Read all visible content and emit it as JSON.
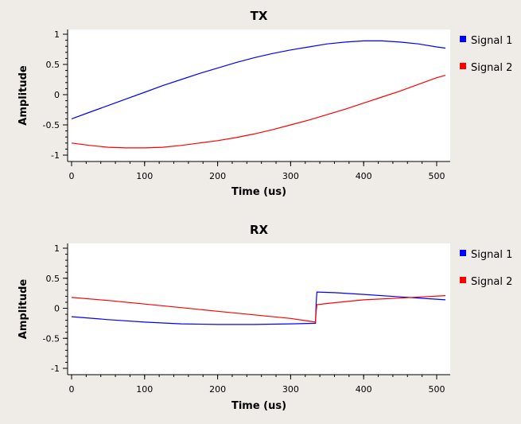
{
  "chart_data": [
    {
      "type": "line",
      "title": "TX",
      "xlabel": "Time (us)",
      "ylabel": "Amplitude",
      "xlim": [
        0,
        512
      ],
      "ylim": [
        -1,
        1
      ],
      "xticks": [
        0,
        100,
        200,
        300,
        400,
        500
      ],
      "yticks": [
        1,
        0.5,
        0,
        -0.5,
        -1
      ],
      "grid": false,
      "legend": "right",
      "series": [
        {
          "name": "Signal 1",
          "color": "#0000ff",
          "x": [
            0,
            25,
            50,
            75,
            100,
            125,
            150,
            175,
            200,
            225,
            250,
            275,
            300,
            325,
            350,
            375,
            400,
            425,
            450,
            475,
            500,
            512
          ],
          "y": [
            -0.4,
            -0.29,
            -0.18,
            -0.07,
            0.04,
            0.15,
            0.25,
            0.35,
            0.44,
            0.53,
            0.61,
            0.68,
            0.74,
            0.79,
            0.84,
            0.87,
            0.89,
            0.89,
            0.87,
            0.84,
            0.79,
            0.77
          ]
        },
        {
          "name": "Signal 2",
          "color": "#ff0000",
          "x": [
            0,
            25,
            50,
            75,
            100,
            125,
            150,
            175,
            200,
            225,
            250,
            275,
            300,
            325,
            350,
            375,
            400,
            425,
            450,
            475,
            500,
            512
          ],
          "y": [
            -0.8,
            -0.84,
            -0.87,
            -0.88,
            -0.88,
            -0.87,
            -0.84,
            -0.8,
            -0.76,
            -0.71,
            -0.65,
            -0.58,
            -0.5,
            -0.42,
            -0.33,
            -0.24,
            -0.14,
            -0.04,
            0.06,
            0.17,
            0.28,
            0.32
          ]
        }
      ]
    },
    {
      "type": "line",
      "title": "RX",
      "xlabel": "Time (us)",
      "ylabel": "Amplitude",
      "xlim": [
        0,
        512
      ],
      "ylim": [
        -1,
        1
      ],
      "xticks": [
        0,
        100,
        200,
        300,
        400,
        500
      ],
      "yticks": [
        1,
        0.5,
        0,
        -0.5,
        -1
      ],
      "grid": false,
      "legend": "right",
      "series": [
        {
          "name": "Signal 1",
          "color": "#0000ff",
          "x": [
            0,
            50,
            100,
            150,
            200,
            250,
            300,
            334,
            335,
            336,
            360,
            400,
            450,
            512
          ],
          "y": [
            -0.14,
            -0.19,
            -0.23,
            -0.26,
            -0.27,
            -0.27,
            -0.26,
            -0.25,
            0.09,
            0.27,
            0.26,
            0.23,
            0.19,
            0.14
          ]
        },
        {
          "name": "Signal 2",
          "color": "#ff0000",
          "x": [
            0,
            50,
            100,
            150,
            200,
            250,
            300,
            334,
            335,
            336,
            350,
            400,
            450,
            480,
            512
          ],
          "y": [
            0.18,
            0.13,
            0.07,
            0.01,
            -0.05,
            -0.11,
            -0.17,
            -0.23,
            -0.05,
            0.06,
            0.08,
            0.14,
            0.17,
            0.19,
            0.21
          ]
        }
      ]
    }
  ]
}
